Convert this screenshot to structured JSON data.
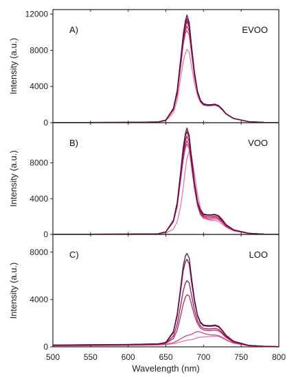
{
  "colors": {
    "series": [
      "#5c0f3c",
      "#7a1248",
      "#9b1a5a",
      "#b8286e",
      "#cf4a85",
      "#e07aa6",
      "#ec9cbc"
    ],
    "axis": "#222222"
  },
  "chart_data": [
    {
      "type": "line",
      "tag": "A)",
      "name": "EVOO",
      "xlim": [
        500,
        800
      ],
      "ylim": [
        0,
        12500
      ],
      "yticks": [
        0,
        4000,
        8000,
        12000
      ],
      "xticks": [
        500,
        550,
        600,
        650,
        700,
        750,
        800
      ],
      "ylabel": "Intensity (a.u.)",
      "x": [
        500,
        600,
        640,
        650,
        660,
        665,
        670,
        673,
        676,
        678,
        681,
        684,
        688,
        692,
        696,
        700,
        705,
        710,
        715,
        720,
        725,
        730,
        740,
        760,
        780,
        800
      ],
      "series": [
        {
          "values": [
            20,
            40,
            80,
            300,
            1600,
            3600,
            7300,
            9700,
            11300,
            11900,
            11100,
            8600,
            5600,
            3500,
            2500,
            2100,
            2000,
            2000,
            2050,
            1900,
            1500,
            1000,
            480,
            120,
            40,
            10
          ]
        },
        {
          "values": [
            20,
            40,
            80,
            300,
            1550,
            3500,
            7100,
            9400,
            11000,
            11500,
            10800,
            8400,
            5500,
            3450,
            2450,
            2050,
            1950,
            1950,
            2000,
            1850,
            1450,
            980,
            470,
            115,
            40,
            10
          ]
        },
        {
          "values": [
            20,
            40,
            80,
            290,
            1500,
            3350,
            6900,
            9100,
            10600,
            11200,
            10500,
            8200,
            5400,
            3400,
            2400,
            2000,
            1920,
            1920,
            1980,
            1830,
            1430,
            960,
            460,
            110,
            40,
            10
          ]
        },
        {
          "values": [
            20,
            40,
            80,
            280,
            1450,
            3200,
            6600,
            8800,
            10200,
            10700,
            10100,
            7900,
            5200,
            3300,
            2350,
            1980,
            1900,
            1900,
            1960,
            1810,
            1410,
            950,
            455,
            110,
            40,
            10
          ]
        },
        {
          "values": [
            20,
            40,
            80,
            270,
            1400,
            3100,
            6400,
            8600,
            9900,
            10200,
            9700,
            7700,
            5100,
            3250,
            2300,
            1950,
            1880,
            1880,
            1950,
            1800,
            1400,
            940,
            450,
            110,
            40,
            10
          ]
        },
        {
          "values": [
            20,
            40,
            70,
            220,
            1100,
            2500,
            5100,
            6700,
            7700,
            8100,
            7800,
            6300,
            4400,
            2950,
            2250,
            2000,
            1950,
            1950,
            2000,
            1850,
            1450,
            980,
            470,
            115,
            40,
            10
          ]
        }
      ]
    },
    {
      "type": "line",
      "tag": "B)",
      "name": "VOO",
      "xlim": [
        500,
        800
      ],
      "ylim": [
        0,
        12500
      ],
      "yticks": [
        0,
        4000,
        8000
      ],
      "xticks": [
        500,
        550,
        600,
        650,
        700,
        750,
        800
      ],
      "ylabel": "Intensity (a.u.)",
      "x": [
        500,
        600,
        640,
        650,
        660,
        665,
        670,
        673,
        676,
        678,
        681,
        684,
        688,
        692,
        696,
        700,
        705,
        710,
        715,
        720,
        725,
        730,
        740,
        760,
        780,
        800
      ],
      "series": [
        {
          "values": [
            20,
            40,
            80,
            300,
            1600,
            3600,
            7300,
            9700,
            11300,
            11900,
            11100,
            8700,
            5800,
            3700,
            2700,
            2300,
            2200,
            2200,
            2250,
            2100,
            1650,
            1100,
            520,
            130,
            40,
            10
          ]
        },
        {
          "values": [
            20,
            40,
            80,
            300,
            1550,
            3500,
            7100,
            9400,
            11000,
            11500,
            10800,
            8500,
            5700,
            3650,
            2650,
            2250,
            2150,
            2150,
            2200,
            2050,
            1620,
            1080,
            510,
            125,
            40,
            10
          ]
        },
        {
          "values": [
            20,
            40,
            80,
            290,
            1500,
            3300,
            6800,
            9000,
            10500,
            11000,
            10400,
            8200,
            5500,
            3500,
            2500,
            2100,
            2000,
            2000,
            2050,
            1920,
            1520,
            1020,
            490,
            120,
            40,
            10
          ]
        },
        {
          "values": [
            20,
            40,
            80,
            280,
            1450,
            3200,
            6500,
            8600,
            10000,
            10500,
            9900,
            7900,
            5300,
            3350,
            2350,
            1950,
            1850,
            1850,
            1900,
            1780,
            1400,
            950,
            460,
            115,
            40,
            10
          ]
        },
        {
          "values": [
            20,
            40,
            80,
            270,
            1400,
            3100,
            6300,
            8300,
            9700,
            10100,
            9600,
            7600,
            5100,
            3200,
            2200,
            1800,
            1700,
            1700,
            1750,
            1650,
            1300,
            880,
            430,
            110,
            40,
            10
          ]
        },
        {
          "values": [
            20,
            40,
            70,
            150,
            600,
            1400,
            3300,
            5200,
            7300,
            8500,
            9300,
            8900,
            6800,
            4500,
            3000,
            2200,
            1700,
            1550,
            1550,
            1450,
            1150,
            800,
            390,
            100,
            35,
            10
          ]
        }
      ]
    },
    {
      "type": "line",
      "tag": "C)",
      "name": "LOO",
      "xlim": [
        500,
        800
      ],
      "ylim": [
        0,
        9500
      ],
      "yticks": [
        0,
        4000,
        8000
      ],
      "xticks": [
        500,
        550,
        600,
        650,
        700,
        750,
        800
      ],
      "xtick_labels": [
        "500",
        "550",
        "600",
        "650",
        "700",
        "750",
        "800"
      ],
      "ylabel": "Intensity (a.u.)",
      "xlabel": "Wavelength (nm)",
      "x": [
        500,
        550,
        600,
        640,
        650,
        660,
        665,
        670,
        673,
        676,
        678,
        681,
        684,
        688,
        692,
        696,
        700,
        705,
        710,
        715,
        720,
        725,
        730,
        740,
        760,
        780,
        800
      ],
      "series": [
        {
          "values": [
            150,
            180,
            200,
            260,
            380,
            1300,
            2800,
            5200,
            6800,
            7700,
            7900,
            7500,
            5900,
            4000,
            2700,
            2100,
            1850,
            1800,
            1800,
            1850,
            1750,
            1400,
            980,
            480,
            130,
            50,
            20
          ]
        },
        {
          "values": [
            150,
            180,
            200,
            250,
            360,
            1200,
            2600,
            4900,
            6400,
            7200,
            7400,
            7000,
            5500,
            3800,
            2600,
            2000,
            1780,
            1730,
            1730,
            1780,
            1680,
            1350,
            950,
            470,
            125,
            50,
            20
          ]
        },
        {
          "values": [
            130,
            160,
            180,
            230,
            330,
            900,
            1900,
            3600,
            4700,
            5400,
            5600,
            5400,
            4400,
            3100,
            2200,
            1750,
            1560,
            1520,
            1520,
            1560,
            1480,
            1200,
            850,
            420,
            115,
            45,
            20
          ]
        },
        {
          "values": [
            110,
            140,
            160,
            210,
            300,
            700,
            1400,
            2700,
            3600,
            4200,
            4400,
            4300,
            3600,
            2650,
            1950,
            1580,
            1420,
            1380,
            1380,
            1420,
            1350,
            1100,
            780,
            390,
            110,
            40,
            20
          ]
        },
        {
          "values": [
            90,
            110,
            130,
            170,
            220,
            350,
            500,
            700,
            800,
            900,
            950,
            1000,
            1050,
            1200,
            1300,
            1250,
            1150,
            1050,
            1000,
            1000,
            950,
            800,
            600,
            320,
            90,
            35,
            15
          ]
        },
        {
          "values": [
            80,
            100,
            120,
            150,
            190,
            260,
            330,
            420,
            480,
            530,
            560,
            580,
            600,
            680,
            780,
            820,
            840,
            850,
            870,
            900,
            870,
            740,
            560,
            300,
            85,
            30,
            15
          ]
        }
      ]
    }
  ]
}
